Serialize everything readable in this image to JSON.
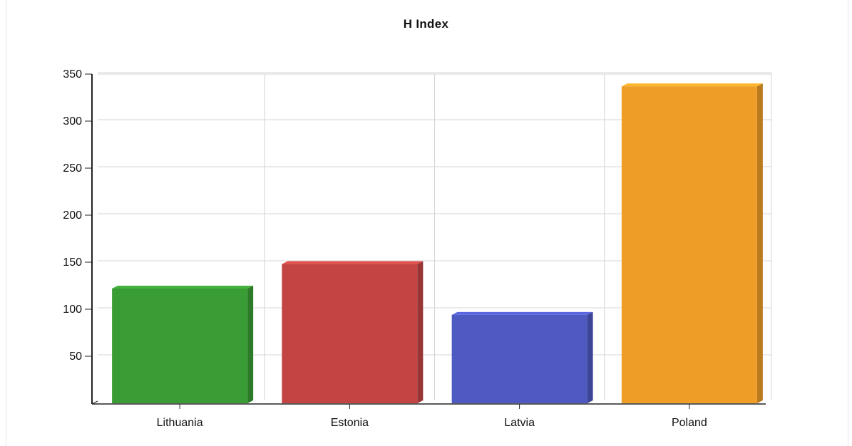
{
  "chart_data": {
    "type": "bar",
    "title": "H Index",
    "xlabel": "",
    "ylabel": "",
    "categories": [
      "Lithuania",
      "Estonia",
      "Latvia",
      "Poland"
    ],
    "values": [
      122,
      148,
      94,
      337
    ],
    "colors": [
      "#3a9c34",
      "#c44444",
      "#4e59c2",
      "#ee9d27"
    ],
    "ylim": [
      0,
      350
    ],
    "yticks": [
      50,
      100,
      150,
      200,
      250,
      300,
      350
    ],
    "grid": true,
    "legend": "none"
  }
}
